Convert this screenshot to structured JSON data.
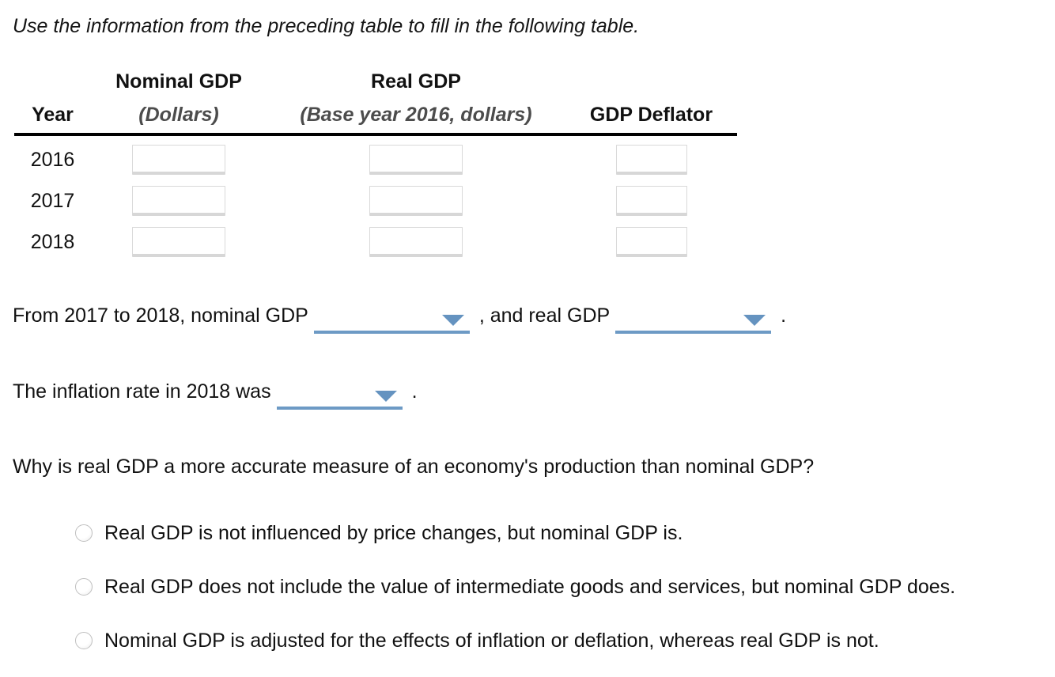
{
  "instruction": "Use the information from the preceding table to fill in the following table.",
  "table": {
    "group_headers": [
      "Nominal GDP",
      "Real GDP"
    ],
    "headers": {
      "year": "Year",
      "nominal_sub": "(Dollars)",
      "real_sub": "(Base year 2016, dollars)",
      "deflator": "GDP Deflator"
    },
    "rows": [
      {
        "year": "2016",
        "nominal": "",
        "real": "",
        "deflator": ""
      },
      {
        "year": "2017",
        "nominal": "",
        "real": "",
        "deflator": ""
      },
      {
        "year": "2018",
        "nominal": "",
        "real": "",
        "deflator": ""
      }
    ]
  },
  "sentence1": {
    "part1": "From 2017 to 2018, nominal GDP",
    "part2": ", and real GDP",
    "part3": ".",
    "dropdown1_value": "",
    "dropdown2_value": ""
  },
  "sentence2": {
    "part1": "The inflation rate in 2018 was",
    "part2": ".",
    "dropdown_value": ""
  },
  "question": "Why is real GDP a more accurate measure of an economy's production than nominal GDP?",
  "options": [
    {
      "label": "Real GDP is not influenced by price changes, but nominal GDP is.",
      "selected": false
    },
    {
      "label": "Real GDP does not include the value of intermediate goods and services, but nominal GDP does.",
      "selected": false
    },
    {
      "label": "Nominal GDP is adjusted for the effects of inflation or deflation, whereas real GDP is not.",
      "selected": false
    }
  ],
  "colors": {
    "accent_blue_underline": "#6d9ac5",
    "accent_blue_arrow": "#6593c0",
    "header_sub_gray": "#4c4c4c",
    "table_rule_black": "#000000",
    "input_border_gray": "#d9d9d9",
    "radio_border_gray": "#bfbfbf",
    "text_color": "#111111",
    "background": "#ffffff"
  }
}
